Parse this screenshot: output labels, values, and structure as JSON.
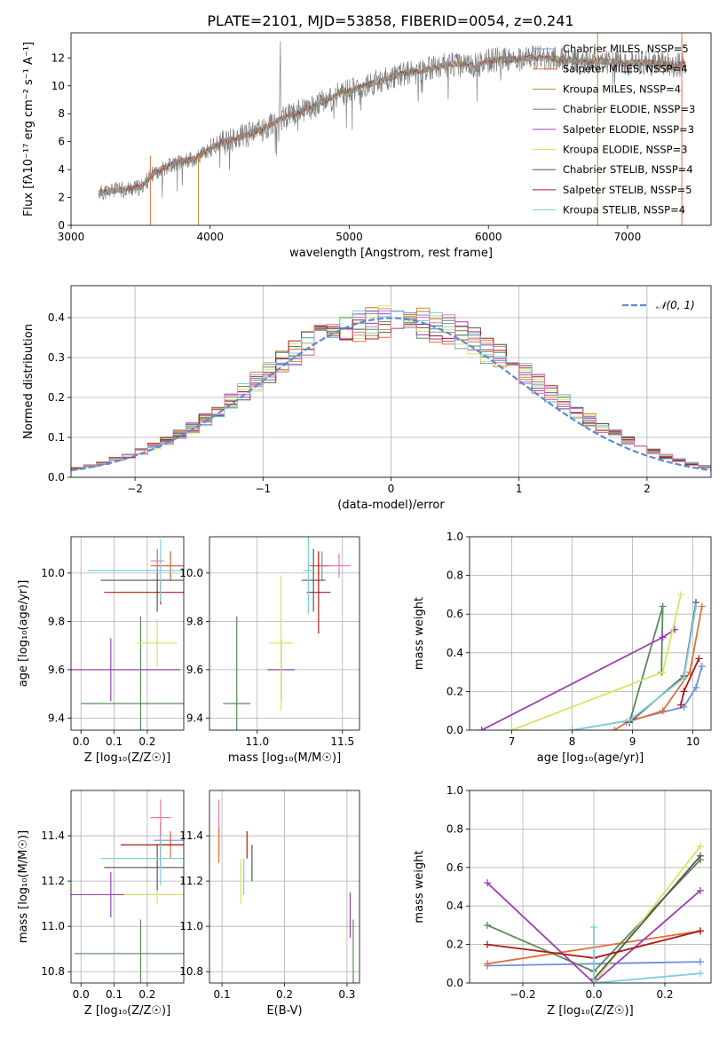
{
  "title": "PLATE=2101, MJD=53858, FIBERID=0054, z=0.241",
  "colors": {
    "Chabrier MILES": "#6f8fdc",
    "Salpeter MILES": "#e0703a",
    "Kroupa MILES": "#b5903a",
    "Chabrier ELODIE": "#5a8a5a",
    "Salpeter ELODIE": "#9a40b0",
    "Kroupa ELODIE": "#cfe860",
    "Chabrier STELIB": "#555555",
    "Salpeter STELIB": "#b01818",
    "Kroupa STELIB": "#7fd0d8",
    "gaussian": "#5b8bd0",
    "extra": "#e07ab0"
  },
  "chart_data": [
    {
      "type": "line",
      "xlabel": "wavelength [Angstrom, rest frame]",
      "ylabel": "Flux [fλ10⁻¹⁷ erg cm⁻² s⁻¹ A⁻¹]",
      "xlim": [
        3000,
        7600
      ],
      "ylim": [
        0,
        13.8
      ],
      "xticks": [
        3000,
        4000,
        5000,
        6000,
        7000
      ],
      "yticks": [
        0,
        2,
        4,
        6,
        8,
        10,
        12
      ],
      "legend_position": "right",
      "legend": [
        "Chabrier MILES, NSSP=5",
        "Salpeter MILES, NSSP=4",
        "Kroupa MILES, NSSP=4",
        "Chabrier ELODIE, NSSP=3",
        "Salpeter ELODIE, NSSP=3",
        "Kroupa ELODIE, NSSP=3",
        "Chabrier STELIB, NSSP=4",
        "Salpeter STELIB, NSSP=5",
        "Kroupa STELIB, NSSP=4"
      ],
      "series_x": [
        3200,
        3300,
        3400,
        3500,
        3600,
        3700,
        3800,
        3900,
        4000,
        4100,
        4200,
        4300,
        4400,
        4500,
        4600,
        4700,
        4800,
        4900,
        5000,
        5100,
        5200,
        5300,
        5400,
        5500,
        5600,
        5700,
        5800,
        5900,
        6000,
        6100,
        6200,
        6300,
        6400,
        6500,
        6600,
        6700,
        6800,
        6900,
        7000,
        7100,
        7200,
        7300,
        7400
      ],
      "series_y": [
        2.3,
        2.5,
        2.6,
        2.7,
        3.8,
        4.3,
        4.6,
        4.8,
        5.5,
        6.0,
        6.3,
        6.6,
        7.0,
        7.6,
        8.0,
        8.3,
        8.8,
        9.3,
        9.6,
        10.0,
        10.3,
        10.6,
        10.9,
        11.0,
        11.3,
        11.5,
        11.6,
        11.4,
        11.8,
        11.9,
        11.9,
        12.0,
        12.0,
        11.9,
        11.8,
        11.7,
        11.8,
        11.7,
        11.6,
        11.7,
        11.6,
        11.5,
        11.5
      ]
    },
    {
      "type": "step",
      "xlabel": "(data-model)/error",
      "ylabel": "Normed distribution",
      "xlim": [
        -2.5,
        2.5
      ],
      "ylim": [
        0,
        0.48
      ],
      "xticks": [
        -2,
        -1,
        0,
        1,
        2
      ],
      "yticks": [
        0,
        0.1,
        0.2,
        0.3,
        0.4
      ],
      "grid": true,
      "legend": [
        "𝒩(0, 1)"
      ],
      "legend_position": "top-right",
      "bins_x": [
        -2.5,
        -2.4,
        -2.3,
        -2.2,
        -2.1,
        -2.0,
        -1.9,
        -1.8,
        -1.7,
        -1.6,
        -1.5,
        -1.4,
        -1.3,
        -1.2,
        -1.1,
        -1.0,
        -0.9,
        -0.8,
        -0.7,
        -0.6,
        -0.5,
        -0.4,
        -0.3,
        -0.2,
        -0.1,
        0.0,
        0.1,
        0.2,
        0.3,
        0.4,
        0.5,
        0.6,
        0.7,
        0.8,
        0.9,
        1.0,
        1.1,
        1.2,
        1.3,
        1.4,
        1.5,
        1.6,
        1.7,
        1.8,
        1.9,
        2.0,
        2.1,
        2.2,
        2.3,
        2.4
      ],
      "hist_mean": [
        0.022,
        0.028,
        0.035,
        0.045,
        0.055,
        0.065,
        0.078,
        0.092,
        0.108,
        0.125,
        0.145,
        0.165,
        0.19,
        0.215,
        0.24,
        0.26,
        0.285,
        0.31,
        0.33,
        0.345,
        0.36,
        0.37,
        0.38,
        0.385,
        0.39,
        0.392,
        0.39,
        0.385,
        0.38,
        0.37,
        0.355,
        0.34,
        0.32,
        0.3,
        0.28,
        0.26,
        0.235,
        0.21,
        0.19,
        0.165,
        0.145,
        0.125,
        0.108,
        0.092,
        0.078,
        0.065,
        0.052,
        0.042,
        0.034,
        0.027
      ],
      "gauss_mu": 0,
      "gauss_sigma": 1
    },
    {
      "type": "errorbar",
      "xlabel": "Z [log₁₀(Z/Z☉)]",
      "ylabel": "age [log₁₀(age/yr)]",
      "xlim": [
        -0.03,
        0.31
      ],
      "ylim": [
        9.35,
        10.15
      ],
      "xticks": [
        0.0,
        0.1,
        0.2
      ],
      "yticks": [
        9.4,
        9.6,
        9.8,
        10.0
      ],
      "points": [
        {
          "s": "Chabrier MILES",
          "x": 0.27,
          "y": 10.03,
          "ex": 0.05,
          "ey": 0.06
        },
        {
          "s": "Salpeter MILES",
          "x": 0.27,
          "y": 10.03,
          "ex": 0.06,
          "ey": 0.06
        },
        {
          "s": "Chabrier ELODIE",
          "x": 0.18,
          "y": 9.46,
          "ex": 0.18,
          "ey": 0.36
        },
        {
          "s": "Salpeter ELODIE",
          "x": 0.09,
          "y": 9.6,
          "ex": 0.21,
          "ey": 0.13
        },
        {
          "s": "Kroupa ELODIE",
          "x": 0.23,
          "y": 9.71,
          "ex": 0.06,
          "ey": 0.1
        },
        {
          "s": "Chabrier STELIB",
          "x": 0.23,
          "y": 9.97,
          "ex": 0.17,
          "ey": 0.13
        },
        {
          "s": "Salpeter STELIB",
          "x": 0.24,
          "y": 9.92,
          "ex": 0.17,
          "ey": 0.05
        },
        {
          "s": "Kroupa STELIB",
          "x": 0.24,
          "y": 10.01,
          "ex": 0.22,
          "ey": 0.13
        },
        {
          "s": "extra",
          "x": 0.23,
          "y": 10.05,
          "ex": 0.02,
          "ey": 0.05
        }
      ]
    },
    {
      "type": "errorbar",
      "xlabel": "mass [log₁₀(M/M☉)]",
      "ylabel": "",
      "xlim": [
        10.72,
        11.6
      ],
      "ylim": [
        9.35,
        10.15
      ],
      "xticks": [
        11.0,
        11.5
      ],
      "yticks": [
        9.4,
        9.6,
        9.8,
        10.0
      ],
      "points": [
        {
          "s": "Chabrier MILES",
          "x": 11.38,
          "y": 10.03,
          "ex": 0.06,
          "ey": 0.06
        },
        {
          "s": "Salpeter MILES",
          "x": 11.36,
          "y": 10.03,
          "ex": 0.06,
          "ey": 0.06
        },
        {
          "s": "Chabrier ELODIE",
          "x": 10.88,
          "y": 9.46,
          "ex": 0.08,
          "ey": 0.36
        },
        {
          "s": "Salpeter ELODIE",
          "x": 11.14,
          "y": 9.6,
          "ex": 0.08,
          "ey": 0.13
        },
        {
          "s": "Kroupa ELODIE",
          "x": 11.14,
          "y": 9.71,
          "ex": 0.07,
          "ey": 0.28
        },
        {
          "s": "Chabrier STELIB",
          "x": 11.33,
          "y": 9.97,
          "ex": 0.07,
          "ey": 0.13
        },
        {
          "s": "Salpeter STELIB",
          "x": 11.36,
          "y": 9.92,
          "ex": 0.07,
          "ey": 0.17
        },
        {
          "s": "Kroupa STELIB",
          "x": 11.3,
          "y": 10.01,
          "ex": 0.03,
          "ey": 0.18
        },
        {
          "s": "extra",
          "x": 11.48,
          "y": 10.03,
          "ex": 0.07,
          "ey": 0.05
        }
      ]
    },
    {
      "type": "line",
      "xlabel": "age [log₁₀(age/yr)]",
      "ylabel": "mass weight",
      "xlim": [
        6.3,
        10.3
      ],
      "ylim": [
        0,
        1.0
      ],
      "xticks": [
        7,
        8,
        9,
        10
      ],
      "yticks": [
        0.0,
        0.2,
        0.4,
        0.6,
        0.8,
        1.0
      ],
      "grid": true,
      "series": [
        {
          "s": "Chabrier MILES",
          "x": [
            8.0,
            8.95,
            9.85,
            10.05,
            10.15
          ],
          "y": [
            0.0,
            0.05,
            0.12,
            0.22,
            0.33
          ]
        },
        {
          "s": "Salpeter MILES",
          "x": [
            8.7,
            8.9,
            9.5,
            9.95,
            10.15
          ],
          "y": [
            0.0,
            0.04,
            0.1,
            0.3,
            0.64
          ]
        },
        {
          "s": "Chabrier ELODIE",
          "x": [
            8.95,
            9.5,
            9.48
          ],
          "y": [
            0.04,
            0.64,
            0.3
          ]
        },
        {
          "s": "Salpeter ELODIE",
          "x": [
            6.5,
            9.5,
            9.7
          ],
          "y": [
            0.0,
            0.48,
            0.52
          ]
        },
        {
          "s": "Kroupa ELODIE",
          "x": [
            7.0,
            9.5,
            9.8
          ],
          "y": [
            0.0,
            0.3,
            0.7
          ]
        },
        {
          "s": "Chabrier STELIB",
          "x": [
            8.95,
            9.85,
            10.05
          ],
          "y": [
            0.04,
            0.28,
            0.66
          ]
        },
        {
          "s": "Salpeter STELIB",
          "x": [
            9.8,
            9.85,
            10.1
          ],
          "y": [
            0.13,
            0.2,
            0.37
          ]
        },
        {
          "s": "Kroupa STELIB",
          "x": [
            8.0,
            8.95,
            9.85,
            10.05
          ],
          "y": [
            0.0,
            0.05,
            0.27,
            0.64
          ]
        }
      ]
    },
    {
      "type": "errorbar",
      "xlabel": "Z [log₁₀(Z/Z☉)]",
      "ylabel": "mass [log₁₀(M/M☉)]",
      "xlim": [
        -0.03,
        0.31
      ],
      "ylim": [
        10.75,
        11.6
      ],
      "xticks": [
        0.0,
        0.1,
        0.2
      ],
      "yticks": [
        10.8,
        11.0,
        11.2,
        11.4
      ],
      "points": [
        {
          "s": "Chabrier MILES",
          "x": 0.27,
          "y": 11.38,
          "ex": 0.05,
          "ey": 0.03
        },
        {
          "s": "Salpeter MILES",
          "x": 0.27,
          "y": 11.36,
          "ex": 0.05,
          "ey": 0.06
        },
        {
          "s": "Chabrier ELODIE",
          "x": 0.18,
          "y": 10.88,
          "ex": 0.2,
          "ey": 0.15
        },
        {
          "s": "Salpeter ELODIE",
          "x": 0.09,
          "y": 11.14,
          "ex": 0.2,
          "ey": 0.1
        },
        {
          "s": "Kroupa ELODIE",
          "x": 0.23,
          "y": 11.14,
          "ex": 0.1,
          "ey": 0.04
        },
        {
          "s": "Chabrier STELIB",
          "x": 0.23,
          "y": 11.26,
          "ex": 0.16,
          "ey": 0.1
        },
        {
          "s": "Salpeter STELIB",
          "x": 0.24,
          "y": 11.36,
          "ex": 0.12,
          "ey": 0.1
        },
        {
          "s": "Kroupa STELIB",
          "x": 0.24,
          "y": 11.3,
          "ex": 0.18,
          "ey": 0.12
        },
        {
          "s": "extra",
          "x": 0.24,
          "y": 11.48,
          "ex": 0.03,
          "ey": 0.08
        }
      ]
    },
    {
      "type": "errorbar",
      "xlabel": "E(B-V)",
      "ylabel": "",
      "xlim": [
        0.08,
        0.32
      ],
      "ylim": [
        10.75,
        11.6
      ],
      "xticks": [
        0.1,
        0.2,
        0.3
      ],
      "yticks": [
        10.8,
        11.0,
        11.2,
        11.4
      ],
      "points": [
        {
          "s": "Chabrier MILES",
          "x": 0.095,
          "y": 11.38,
          "ex": 0,
          "ey": 0.06
        },
        {
          "s": "Salpeter MILES",
          "x": 0.095,
          "y": 11.36,
          "ex": 0,
          "ey": 0.08
        },
        {
          "s": "Chabrier ELODIE",
          "x": 0.31,
          "y": 10.88,
          "ex": 0,
          "ey": 0.15
        },
        {
          "s": "Salpeter ELODIE",
          "x": 0.305,
          "y": 11.05,
          "ex": 0,
          "ey": 0.1
        },
        {
          "s": "Kroupa ELODIE",
          "x": 0.13,
          "y": 11.2,
          "ex": 0,
          "ey": 0.1
        },
        {
          "s": "Chabrier STELIB",
          "x": 0.148,
          "y": 11.28,
          "ex": 0,
          "ey": 0.08
        },
        {
          "s": "Salpeter STELIB",
          "x": 0.14,
          "y": 11.36,
          "ex": 0,
          "ey": 0.06
        },
        {
          "s": "Kroupa STELIB",
          "x": 0.135,
          "y": 11.22,
          "ex": 0,
          "ey": 0.08
        },
        {
          "s": "extra",
          "x": 0.095,
          "y": 11.5,
          "ex": 0,
          "ey": 0.06
        }
      ]
    },
    {
      "type": "line",
      "xlabel": "Z [log₁₀(Z/Z☉)]",
      "ylabel": "mass weight",
      "xlim": [
        -0.35,
        0.33
      ],
      "ylim": [
        0,
        1.0
      ],
      "xticks": [
        -0.2,
        0.0,
        0.2
      ],
      "yticks": [
        0.0,
        0.2,
        0.4,
        0.6,
        0.8,
        1.0
      ],
      "grid": true,
      "series": [
        {
          "s": "Chabrier MILES",
          "x": [
            -0.3,
            0.0,
            0.3
          ],
          "y": [
            0.09,
            0.1,
            0.11
          ]
        },
        {
          "s": "Salpeter MILES",
          "x": [
            -0.3,
            0.3
          ],
          "y": [
            0.1,
            0.27
          ]
        },
        {
          "s": "Chabrier ELODIE",
          "x": [
            -0.3,
            0.0,
            0.3
          ],
          "y": [
            0.3,
            0.06,
            0.64
          ]
        },
        {
          "s": "Salpeter ELODIE",
          "x": [
            -0.3,
            0.0,
            0.3
          ],
          "y": [
            0.52,
            0.0,
            0.48
          ]
        },
        {
          "s": "Kroupa ELODIE",
          "x": [
            0.0,
            0.3
          ],
          "y": [
            0.0,
            0.71
          ]
        },
        {
          "s": "Chabrier STELIB",
          "x": [
            0.0,
            0.3
          ],
          "y": [
            0.02,
            0.66
          ]
        },
        {
          "s": "Salpeter STELIB",
          "x": [
            -0.3,
            0.0,
            0.3
          ],
          "y": [
            0.2,
            0.13,
            0.27
          ]
        },
        {
          "s": "Kroupa STELIB",
          "x": [
            0.0,
            0.0,
            0.3
          ],
          "y": [
            0.29,
            0.0,
            0.05
          ]
        }
      ]
    }
  ]
}
